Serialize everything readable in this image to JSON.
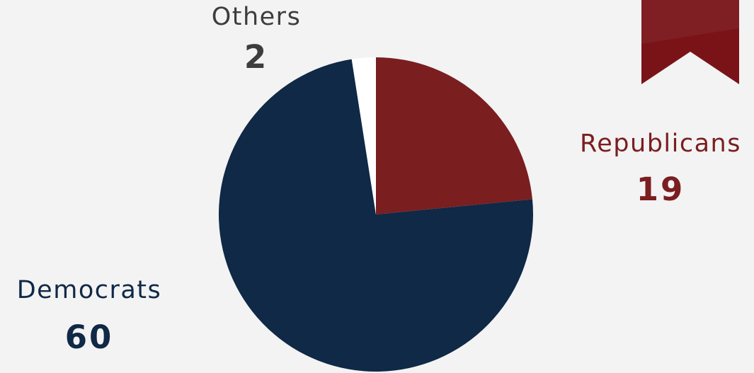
{
  "chart_data": {
    "type": "pie",
    "categories": [
      "Republicans",
      "Democrats",
      "Others"
    ],
    "values": [
      19,
      60,
      2
    ],
    "colors": [
      "#7a1e20",
      "#0f2946",
      "#ffffff"
    ],
    "label_colors": [
      "#7a1e20",
      "#0f2946",
      "#3d3d3d"
    ],
    "start": "12 o'clock, clockwise",
    "legend": "none (direct labels)"
  },
  "decorations": {
    "bookmark_color": "#7a1318",
    "background": "#f3f3f3"
  }
}
